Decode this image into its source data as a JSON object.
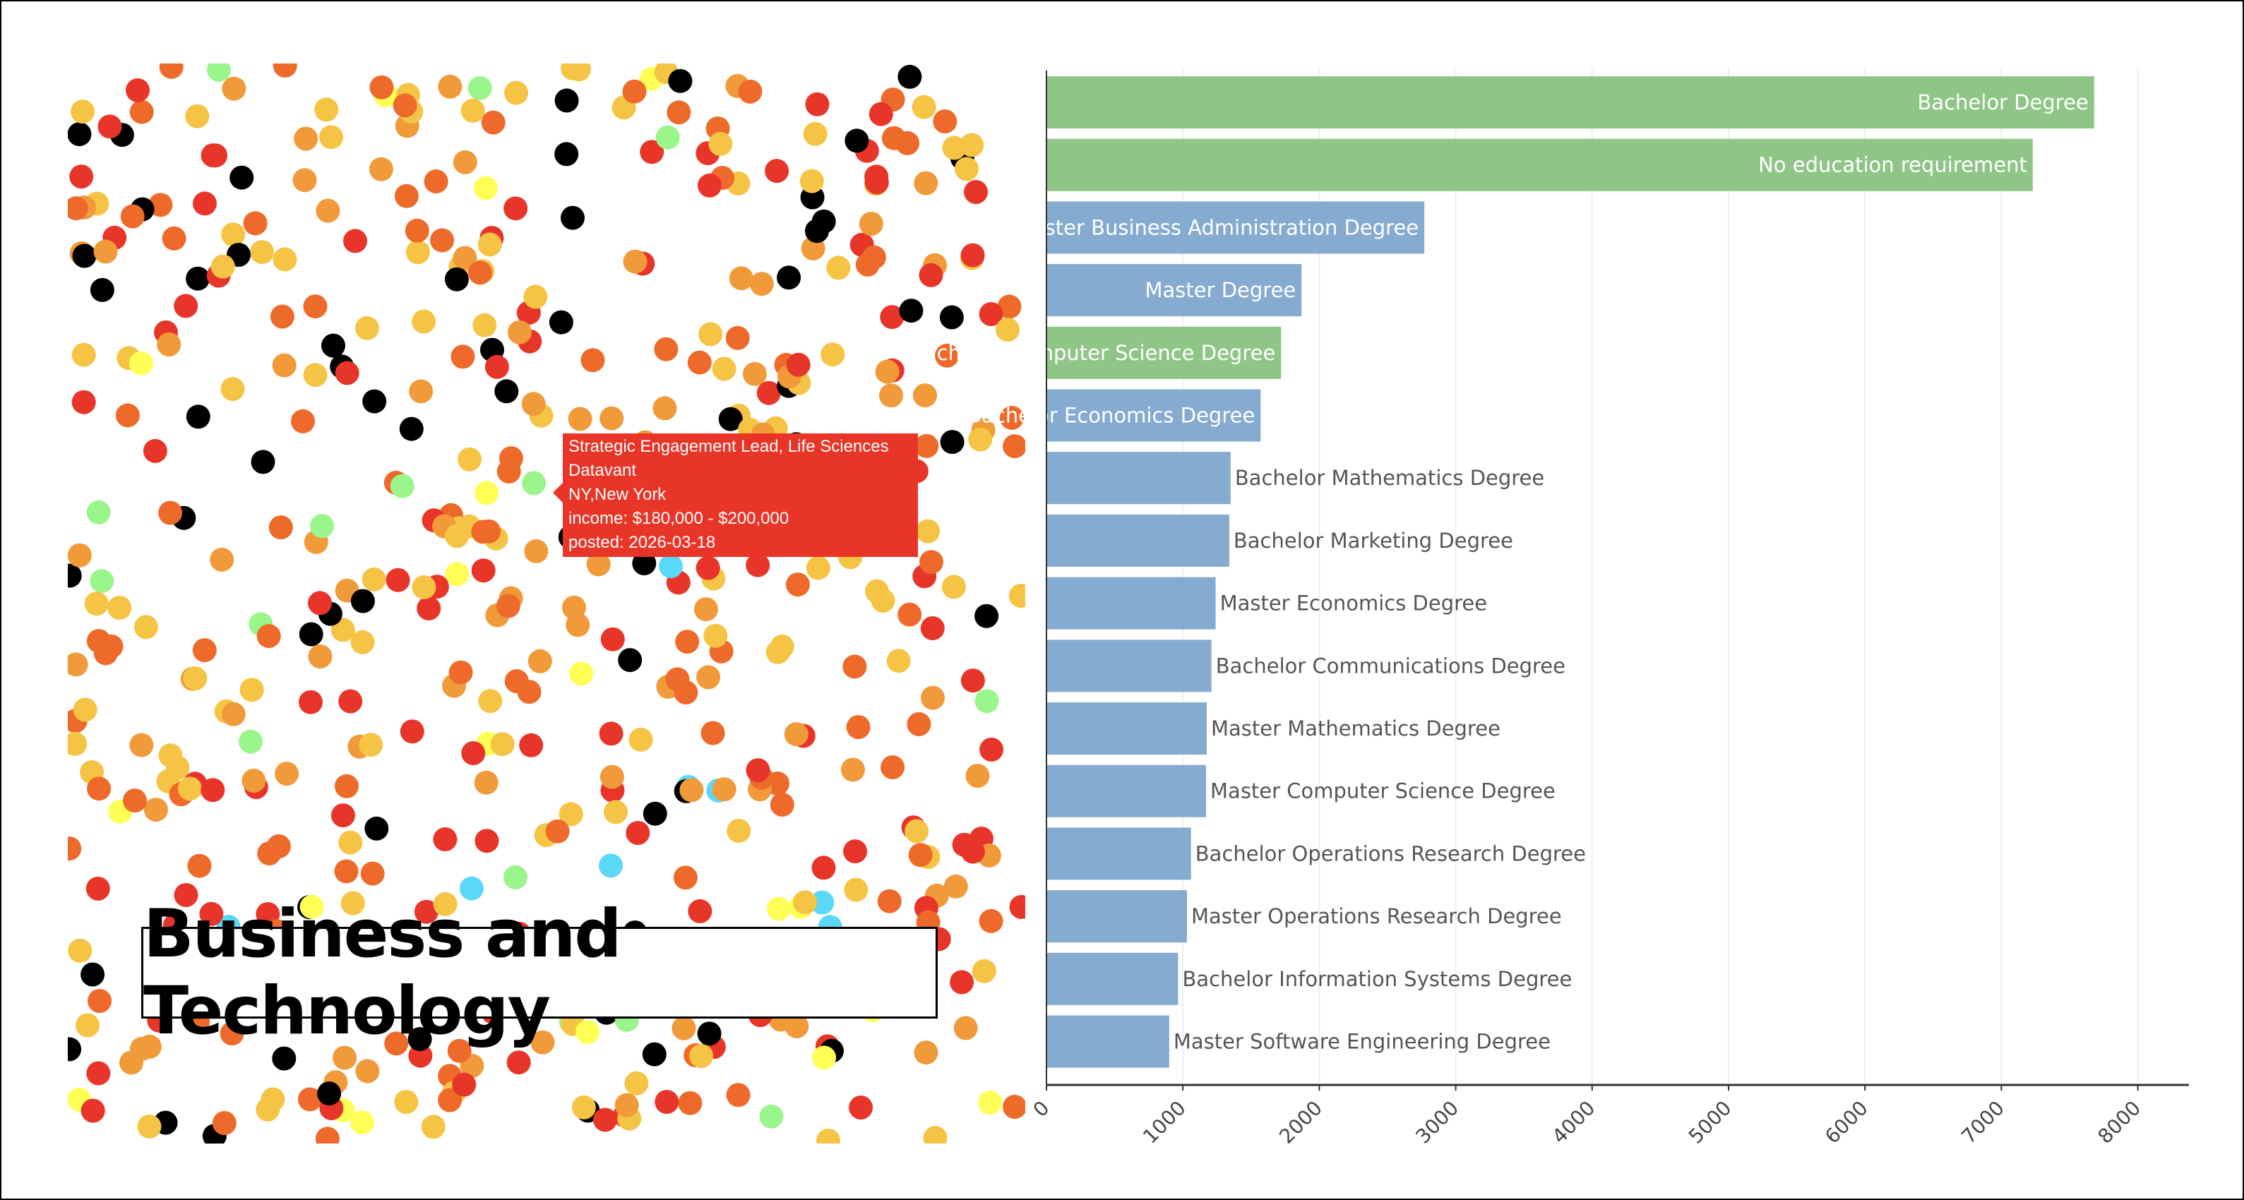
{
  "title": "Business and Technology",
  "tooltip": {
    "title": "Strategic Engagement Lead, Life Sciences",
    "company": "Datavant",
    "location": "NY,New York",
    "income": "income: $180,000 - $200,000",
    "posted": "posted: 2026-03-18"
  },
  "scatter_palette": [
    "#000000",
    "#e8352a",
    "#ee6a2a",
    "#f09a3a",
    "#f6c444",
    "#ffff55",
    "#9af58a",
    "#5ad8f8"
  ],
  "chart_data": {
    "type": "bar",
    "orientation": "horizontal",
    "categories": [
      "Bachelor Degree",
      "No education requirement",
      "Master Business Administration Degree",
      "Master Degree",
      "Bachelor Computer Science Degree",
      "Bachelor Economics Degree",
      "Bachelor Mathematics Degree",
      "Bachelor Marketing Degree",
      "Master Economics Degree",
      "Bachelor Communications Degree",
      "Master Mathematics Degree",
      "Master Computer Science Degree",
      "Bachelor Operations Research Degree",
      "Master Operations Research Degree",
      "Bachelor Information Systems Degree",
      "Master Software Engineering Degree"
    ],
    "values": [
      7680,
      7230,
      2770,
      1870,
      1720,
      1570,
      1350,
      1340,
      1240,
      1210,
      1175,
      1170,
      1060,
      1030,
      965,
      900
    ],
    "highlight": [
      true,
      true,
      false,
      false,
      true,
      false,
      false,
      false,
      false,
      false,
      false,
      false,
      false,
      false,
      false,
      false
    ],
    "colors": {
      "highlight": "#8fc587",
      "default": "#85abd0"
    },
    "xlim": [
      0,
      8400
    ],
    "xticks": [
      0,
      1000,
      2000,
      3000,
      4000,
      5000,
      6000,
      7000,
      8000
    ],
    "grid": true,
    "xlabel": "",
    "ylabel": ""
  }
}
